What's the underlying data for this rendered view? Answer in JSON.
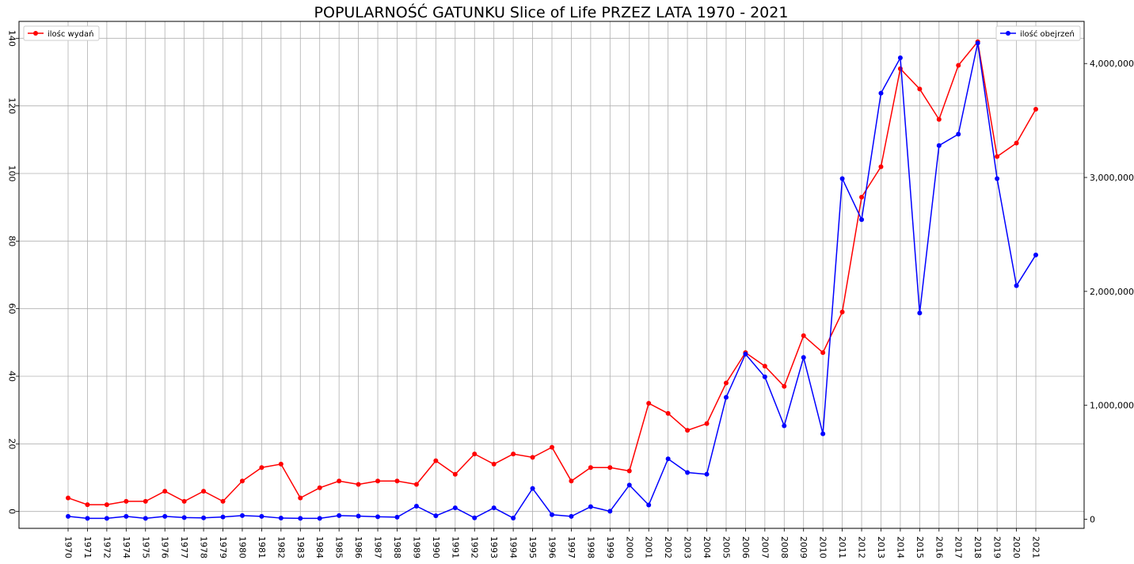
{
  "chart_data": {
    "type": "line",
    "title": "POPULARNOŚĆ GATUNKU Slice of Life PRZEZ LATA 1970 - 2021",
    "xlabel": "",
    "ylabel_left": "",
    "ylabel_right": "",
    "grid": true,
    "x": [
      "1970",
      "1971",
      "1972",
      "1974",
      "1975",
      "1976",
      "1977",
      "1978",
      "1979",
      "1980",
      "1981",
      "1982",
      "1983",
      "1984",
      "1985",
      "1986",
      "1987",
      "1988",
      "1989",
      "1990",
      "1991",
      "1992",
      "1993",
      "1994",
      "1995",
      "1996",
      "1997",
      "1998",
      "1999",
      "2000",
      "2001",
      "2002",
      "2003",
      "2004",
      "2005",
      "2006",
      "2007",
      "2008",
      "2009",
      "2010",
      "2011",
      "2012",
      "2013",
      "2014",
      "2015",
      "2016",
      "2017",
      "2018",
      "2019",
      "2020",
      "2021"
    ],
    "left_axis": {
      "ylim": [
        -5,
        145
      ],
      "ticks": [
        0,
        20,
        40,
        60,
        80,
        100,
        120,
        140
      ],
      "tick_labels": [
        "0",
        "20",
        "40",
        "60",
        "80",
        "100",
        "120",
        "140"
      ]
    },
    "right_axis": {
      "ylim": [
        -80000,
        4370000
      ],
      "ticks": [
        0,
        1000000,
        2000000,
        3000000,
        4000000
      ],
      "tick_labels": [
        "0",
        "1,000,000",
        "2,000,000",
        "3,000,000",
        "4,000,000"
      ]
    },
    "series": [
      {
        "name": "ilośc wydań",
        "axis": "left",
        "color": "#ff0000",
        "values": [
          4,
          2,
          2,
          3,
          3,
          6,
          3,
          6,
          3,
          9,
          13,
          14,
          4,
          7,
          9,
          8,
          9,
          9,
          8,
          15,
          11,
          17,
          14,
          17,
          16,
          19,
          9,
          13,
          13,
          12,
          32,
          29,
          24,
          26,
          38,
          47,
          43,
          37,
          52,
          47,
          59,
          93,
          102,
          131,
          125,
          116,
          132,
          139,
          105,
          109,
          119
        ]
      },
      {
        "name": "ilość obejrzeń",
        "axis": "right",
        "color": "#0000ff",
        "values": [
          25000,
          8000,
          8000,
          25000,
          8000,
          25000,
          15000,
          12000,
          20000,
          32000,
          25000,
          10000,
          8000,
          8000,
          32000,
          28000,
          22000,
          18000,
          115000,
          30000,
          100000,
          12000,
          100000,
          10000,
          270000,
          40000,
          25000,
          110000,
          70000,
          300000,
          125000,
          530000,
          410000,
          395000,
          1070000,
          1450000,
          1250000,
          820000,
          1420000,
          750000,
          2990000,
          2630000,
          3740000,
          4050000,
          1810000,
          3280000,
          3380000,
          4180000,
          2990000,
          2050000,
          2320000
        ]
      }
    ],
    "legend": [
      {
        "label": "ilośc wydań",
        "placement": "top-left"
      },
      {
        "label": "ilość obejrzeń",
        "placement": "top-right"
      }
    ]
  }
}
